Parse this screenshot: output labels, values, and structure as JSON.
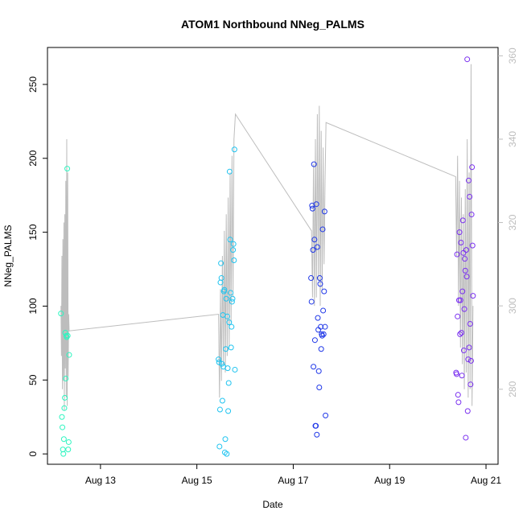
{
  "chart_data": {
    "type": "scatter",
    "title": "ATOM1 Northbound NNeg_PALMS",
    "xlabel": "Date",
    "ylabel": "NNeg_PALMS",
    "x_ticks": [
      "Aug 13",
      "Aug 15",
      "Aug 17",
      "Aug 19",
      "Aug 21"
    ],
    "x_tick_values": [
      13,
      15,
      17,
      19,
      21
    ],
    "xlim": [
      11.9,
      21.25
    ],
    "ylim": [
      -7,
      275
    ],
    "y_ticks": [
      0,
      50,
      100,
      150,
      200,
      250
    ],
    "y2lim": [
      262,
      362
    ],
    "y2_ticks": [
      280,
      300,
      320,
      340,
      360
    ],
    "grid": false,
    "colors": {
      "axis": "#000000",
      "line": "#bdbdbd",
      "right_axis": "#bdbdbd"
    },
    "series": [
      {
        "color": "#2ef5c0",
        "points": [
          [
            12.18,
            95
          ],
          [
            12.2,
            25
          ],
          [
            12.21,
            18
          ],
          [
            12.22,
            3
          ],
          [
            12.23,
            0
          ],
          [
            12.24,
            10
          ],
          [
            12.25,
            31
          ],
          [
            12.26,
            38
          ],
          [
            12.27,
            82
          ],
          [
            12.28,
            51
          ],
          [
            12.29,
            80
          ],
          [
            12.3,
            79
          ],
          [
            12.31,
            193
          ],
          [
            12.32,
            80
          ],
          [
            12.33,
            3
          ],
          [
            12.34,
            8
          ],
          [
            12.35,
            67
          ]
        ]
      },
      {
        "color": "#1fc4f0",
        "points": [
          [
            15.45,
            64
          ],
          [
            15.46,
            62
          ],
          [
            15.47,
            5
          ],
          [
            15.48,
            30
          ],
          [
            15.49,
            116
          ],
          [
            15.5,
            129
          ],
          [
            15.51,
            119
          ],
          [
            15.52,
            61
          ],
          [
            15.53,
            36
          ],
          [
            15.54,
            94
          ],
          [
            15.55,
            59
          ],
          [
            15.56,
            110
          ],
          [
            15.57,
            111
          ],
          [
            15.58,
            1
          ],
          [
            15.59,
            10
          ],
          [
            15.6,
            71
          ],
          [
            15.61,
            105
          ],
          [
            15.62,
            0
          ],
          [
            15.63,
            93
          ],
          [
            15.64,
            58
          ],
          [
            15.65,
            29
          ],
          [
            15.66,
            48
          ],
          [
            15.67,
            89
          ],
          [
            15.68,
            191
          ],
          [
            15.69,
            145
          ],
          [
            15.7,
            109
          ],
          [
            15.71,
            72
          ],
          [
            15.72,
            86
          ],
          [
            15.73,
            103
          ],
          [
            15.74,
            105
          ],
          [
            15.75,
            138
          ],
          [
            15.76,
            142
          ],
          [
            15.77,
            131
          ],
          [
            15.78,
            206
          ],
          [
            15.79,
            57
          ]
        ]
      },
      {
        "color": "#2038e8",
        "points": [
          [
            17.37,
            119
          ],
          [
            17.38,
            103
          ],
          [
            17.39,
            168
          ],
          [
            17.4,
            166
          ],
          [
            17.41,
            138
          ],
          [
            17.42,
            59
          ],
          [
            17.43,
            196
          ],
          [
            17.44,
            145
          ],
          [
            17.45,
            77
          ],
          [
            17.46,
            19
          ],
          [
            17.47,
            19
          ],
          [
            17.48,
            169
          ],
          [
            17.49,
            13
          ],
          [
            17.5,
            140
          ],
          [
            17.51,
            92
          ],
          [
            17.52,
            84
          ],
          [
            17.53,
            56
          ],
          [
            17.54,
            45
          ],
          [
            17.55,
            119
          ],
          [
            17.56,
            115
          ],
          [
            17.57,
            86
          ],
          [
            17.58,
            71
          ],
          [
            17.59,
            81
          ],
          [
            17.6,
            80
          ],
          [
            17.61,
            152
          ],
          [
            17.62,
            97
          ],
          [
            17.63,
            81
          ],
          [
            17.64,
            110
          ],
          [
            17.65,
            164
          ],
          [
            17.66,
            86
          ],
          [
            17.67,
            26
          ]
        ]
      },
      {
        "color": "#7a30f0",
        "points": [
          [
            20.38,
            55
          ],
          [
            20.39,
            54
          ],
          [
            20.4,
            135
          ],
          [
            20.41,
            93
          ],
          [
            20.42,
            40
          ],
          [
            20.43,
            35
          ],
          [
            20.44,
            104
          ],
          [
            20.45,
            150
          ],
          [
            20.46,
            81
          ],
          [
            20.47,
            104
          ],
          [
            20.48,
            143
          ],
          [
            20.49,
            82
          ],
          [
            20.5,
            53
          ],
          [
            20.51,
            110
          ],
          [
            20.52,
            158
          ],
          [
            20.53,
            136
          ],
          [
            20.54,
            70
          ],
          [
            20.55,
            98
          ],
          [
            20.56,
            132
          ],
          [
            20.57,
            124
          ],
          [
            20.58,
            11
          ],
          [
            20.59,
            138
          ],
          [
            20.6,
            120
          ],
          [
            20.61,
            267
          ],
          [
            20.62,
            29
          ],
          [
            20.63,
            64
          ],
          [
            20.64,
            185
          ],
          [
            20.65,
            72
          ],
          [
            20.66,
            174
          ],
          [
            20.67,
            88
          ],
          [
            20.68,
            47
          ],
          [
            20.69,
            63
          ],
          [
            20.7,
            162
          ],
          [
            20.71,
            194
          ],
          [
            20.72,
            141
          ],
          [
            20.73,
            107
          ]
        ]
      }
    ],
    "line_series": [
      [
        12.18,
        300
      ],
      [
        12.19,
        288
      ],
      [
        12.2,
        312
      ],
      [
        12.21,
        280
      ],
      [
        12.22,
        316
      ],
      [
        12.23,
        282
      ],
      [
        12.24,
        320
      ],
      [
        12.25,
        275
      ],
      [
        12.26,
        322
      ],
      [
        12.27,
        285
      ],
      [
        12.28,
        330
      ],
      [
        12.29,
        278
      ],
      [
        12.3,
        340
      ],
      [
        12.31,
        276
      ],
      [
        12.32,
        332
      ],
      [
        12.33,
        283
      ],
      [
        12.34,
        298
      ],
      [
        12.35,
        294
      ],
      [
        15.45,
        298
      ],
      [
        15.47,
        278
      ],
      [
        15.49,
        304
      ],
      [
        15.51,
        282
      ],
      [
        15.53,
        312
      ],
      [
        15.55,
        286
      ],
      [
        15.57,
        318
      ],
      [
        15.59,
        284
      ],
      [
        15.61,
        322
      ],
      [
        15.63,
        288
      ],
      [
        15.65,
        326
      ],
      [
        15.67,
        290
      ],
      [
        15.69,
        332
      ],
      [
        15.71,
        296
      ],
      [
        15.73,
        336
      ],
      [
        15.75,
        302
      ],
      [
        15.77,
        340
      ],
      [
        15.8,
        346
      ],
      [
        17.38,
        318
      ],
      [
        17.4,
        302
      ],
      [
        17.42,
        334
      ],
      [
        17.44,
        300
      ],
      [
        17.46,
        340
      ],
      [
        17.48,
        302
      ],
      [
        17.5,
        346
      ],
      [
        17.52,
        306
      ],
      [
        17.54,
        348
      ],
      [
        17.56,
        300
      ],
      [
        17.58,
        342
      ],
      [
        17.6,
        304
      ],
      [
        17.62,
        338
      ],
      [
        17.64,
        310
      ],
      [
        17.66,
        330
      ],
      [
        17.68,
        344
      ],
      [
        20.37,
        331
      ],
      [
        20.39,
        312
      ],
      [
        20.41,
        336
      ],
      [
        20.43,
        300
      ],
      [
        20.45,
        330
      ],
      [
        20.47,
        290
      ],
      [
        20.49,
        326
      ],
      [
        20.51,
        286
      ],
      [
        20.53,
        322
      ],
      [
        20.55,
        280
      ],
      [
        20.57,
        328
      ],
      [
        20.59,
        284
      ],
      [
        20.61,
        340
      ],
      [
        20.63,
        278
      ],
      [
        20.65,
        332
      ],
      [
        20.67,
        280
      ],
      [
        20.69,
        358
      ],
      [
        20.71,
        276
      ],
      [
        20.73,
        300
      ]
    ]
  }
}
